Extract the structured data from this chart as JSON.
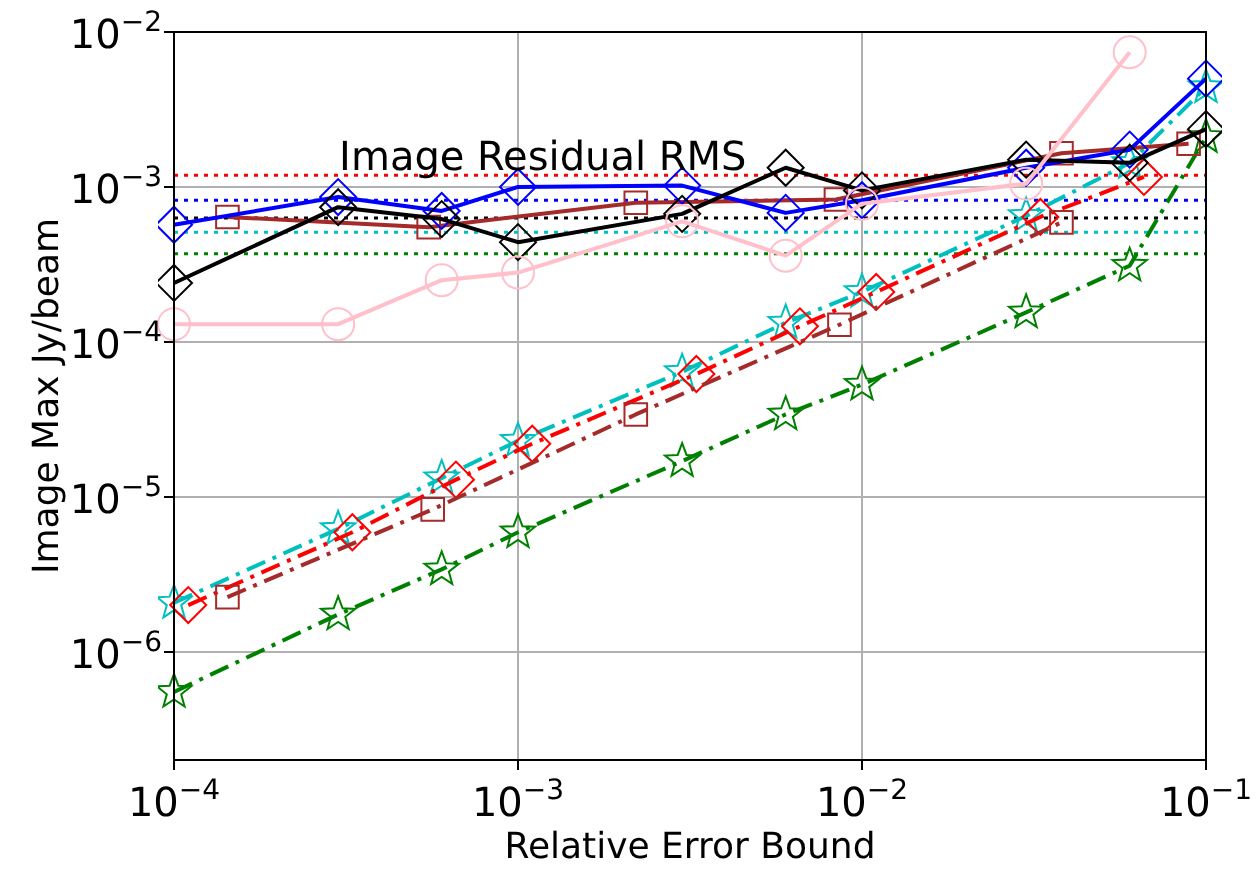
{
  "chart_data": {
    "type": "line",
    "xlabel": "Relative Error Bound",
    "ylabel": "Image Max Jy/beam",
    "annotations": [
      "Image Residual RMS"
    ],
    "log": "xy",
    "grid": true,
    "legend": false,
    "xlim": [
      0.0001,
      0.1
    ],
    "ylim": [
      2e-07,
      0.01
    ],
    "xticks": [
      {
        "value": 0.0001,
        "label": "10$^{−4}$"
      },
      {
        "value": 0.001,
        "label": "10$^{−3}$"
      },
      {
        "value": 0.01,
        "label": "10$^{−2}$"
      },
      {
        "value": 0.1,
        "label": "10$^{−1}$"
      }
    ],
    "yticks": [
      {
        "value": 1e-06,
        "label": "10$^{−6}$"
      },
      {
        "value": 1e-05,
        "label": "10$^{−5}$"
      },
      {
        "value": 0.0001,
        "label": "10$^{−4}$"
      },
      {
        "value": 0.001,
        "label": "10$^{−3}$"
      },
      {
        "value": 0.01,
        "label": "10$^{−2}$"
      }
    ],
    "ref_lines": [
      {
        "axis": "y",
        "value": 0.00119,
        "color": "#ff0000",
        "line_style": "dotted"
      },
      {
        "axis": "y",
        "value": 0.00082,
        "color": "#0000ff",
        "line_style": "dotted"
      },
      {
        "axis": "y",
        "value": 0.00063,
        "color": "#000000",
        "line_style": "dotted"
      },
      {
        "axis": "y",
        "value": 0.00051,
        "color": "#00bfbf",
        "line_style": "dotted"
      },
      {
        "axis": "y",
        "value": 0.00037,
        "color": "#008000",
        "line_style": "dotted"
      }
    ],
    "series": [
      {
        "color": "#ffc0cb",
        "marker": "circle",
        "line_style": "solid",
        "x": [
          0.0001,
          0.0003,
          0.0006,
          0.001,
          0.003,
          0.006,
          0.01,
          0.03,
          0.06
        ],
        "values": [
          0.00013,
          0.00013,
          0.00025,
          0.00028,
          0.0006,
          0.00036,
          0.00078,
          0.00105,
          0.0074
        ]
      },
      {
        "color": "#000000",
        "marker": "diamond",
        "line_style": "solid",
        "x": [
          0.0001,
          0.0003,
          0.0006,
          0.001,
          0.003,
          0.006,
          0.01,
          0.03,
          0.06,
          0.1
        ],
        "values": [
          0.00024,
          0.00074,
          0.00062,
          0.00044,
          0.00067,
          0.00133,
          0.00095,
          0.0015,
          0.00143,
          0.00236
        ]
      },
      {
        "color": "#0000ff",
        "marker": "diamond",
        "line_style": "solid",
        "x": [
          0.0001,
          0.0003,
          0.0006,
          0.001,
          0.003,
          0.006,
          0.01,
          0.03,
          0.06,
          0.1
        ],
        "values": [
          0.00057,
          0.00086,
          0.0007,
          0.001,
          0.00102,
          0.00068,
          0.00082,
          0.00133,
          0.00174,
          0.005
        ]
      },
      {
        "color": "#a52a2a",
        "marker": "square",
        "line_style": "solid",
        "x": [
          0.000143,
          0.00055,
          0.0022,
          0.0084,
          0.038,
          0.089
        ],
        "values": [
          0.00064,
          0.00055,
          0.00079,
          0.00083,
          0.00165,
          0.0019
        ]
      },
      {
        "color": "#008000",
        "marker": "star",
        "line_style": "dashdot",
        "x": [
          0.0001,
          0.0003,
          0.0006,
          0.001,
          0.003,
          0.006,
          0.01,
          0.03,
          0.06,
          0.1
        ],
        "values": [
          5.5e-07,
          1.74e-06,
          3.4e-06,
          5.9e-06,
          1.7e-05,
          3.4e-05,
          5.3e-05,
          0.000155,
          0.00031,
          0.0021
        ]
      },
      {
        "color": "#a52a2a",
        "marker": "square",
        "line_style": "dashdot",
        "x": [
          0.000143,
          0.000565,
          0.0022,
          0.0086,
          0.038
        ],
        "values": [
          2.25e-06,
          8.3e-06,
          3.4e-05,
          0.000129,
          0.00059
        ]
      },
      {
        "color": "#ff0000",
        "marker": "diamond",
        "line_style": "dashdot",
        "x": [
          0.00011,
          0.00033,
          0.00066,
          0.0011,
          0.0033,
          0.0066,
          0.011,
          0.033,
          0.066
        ],
        "values": [
          2e-06,
          5.9e-06,
          1.29e-05,
          2.2e-05,
          6.2e-05,
          0.000126,
          0.00021,
          0.00064,
          0.00116
        ]
      },
      {
        "color": "#00bfbf",
        "marker": "star",
        "line_style": "dashdot",
        "x": [
          0.0001,
          0.0003,
          0.0006,
          0.001,
          0.003,
          0.006,
          0.01,
          0.03,
          0.06,
          0.1
        ],
        "values": [
          2.07e-06,
          6.2e-06,
          1.32e-05,
          2.3e-05,
          6.4e-05,
          0.000133,
          0.00021,
          0.00065,
          0.00143,
          0.0044
        ]
      }
    ]
  }
}
